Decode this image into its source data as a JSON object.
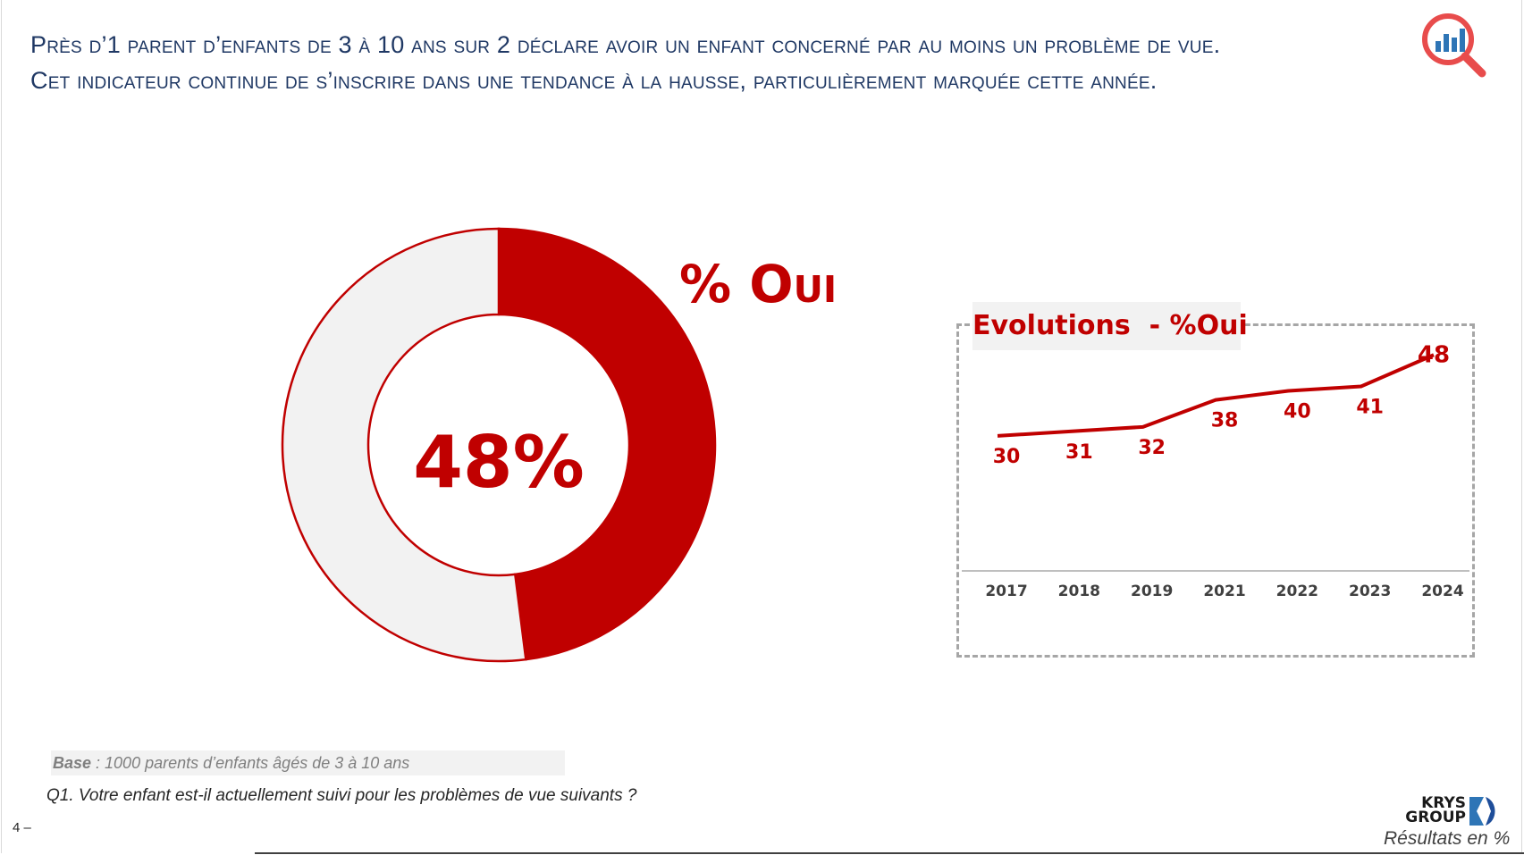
{
  "header": {
    "line1": "Près d’1 parent d’enfants de 3 à 10 ans sur 2 déclare avoir un enfant concerné par au moins un problème de vue.",
    "line2": "Cet indicateur continue de s’inscrire dans une tendance à la hausse, particulièrement marquée cette année."
  },
  "icons": {
    "top_right": "search-chart-icon"
  },
  "colors": {
    "accent": "#c00000",
    "light": "#f2f2f2",
    "title": "#1f3864"
  },
  "chart_data": [
    {
      "type": "pie",
      "categories": [
        "Oui",
        ""
      ],
      "values": [
        48,
        52
      ],
      "center_label": "48%",
      "series_label": "% Oui"
    },
    {
      "type": "line",
      "title": "Evolutions  - %Oui",
      "x": [
        "2017",
        "2018",
        "2019",
        "2021",
        "2022",
        "2023",
        "2024"
      ],
      "series": [
        {
          "values": [
            30,
            31,
            32,
            38,
            40,
            41,
            48
          ]
        }
      ],
      "ylim": [
        0,
        55
      ]
    }
  ],
  "footer": {
    "base_label": "Base",
    "base_text": " : 1000 parents d’enfants âgés de 3 à 10 ans",
    "question": "Q1. Votre enfant est-il actuellement suivi pour les problèmes de vue suivants ?",
    "page_number": "4 –",
    "logo_line1": "KRYS",
    "logo_line2": "GROUP",
    "results_note": "Résultats en %"
  }
}
